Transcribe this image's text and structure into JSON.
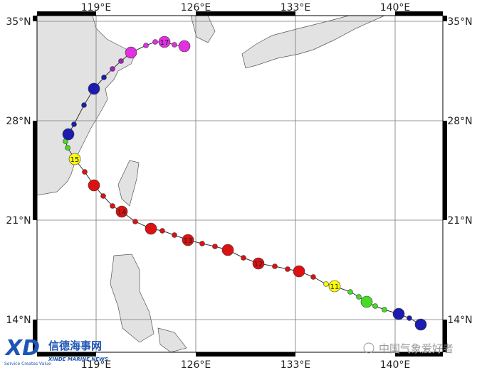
{
  "map": {
    "lon_ticks": [
      {
        "value": 119,
        "label": "119°E"
      },
      {
        "value": 126,
        "label": "126°E"
      },
      {
        "value": 133,
        "label": "133°E"
      },
      {
        "value": 140,
        "label": "140°E"
      }
    ],
    "lat_ticks": [
      {
        "value": 35,
        "label": "35°N"
      },
      {
        "value": 28,
        "label": "28°N"
      },
      {
        "value": 21,
        "label": "21°N"
      },
      {
        "value": 14,
        "label": "14°N"
      }
    ],
    "lonlim": [
      114.85,
      143.35
    ],
    "latlim": [
      11.7,
      35.4
    ],
    "track": [
      {
        "lon": 141.8,
        "lat": 13.65,
        "color": "#1c1cb0",
        "major": true
      },
      {
        "lon": 141.0,
        "lat": 14.1,
        "color": "#1c1cb0",
        "major": false
      },
      {
        "lon": 140.25,
        "lat": 14.4,
        "color": "#1c1cb0",
        "major": true
      },
      {
        "lon": 139.25,
        "lat": 14.7,
        "color": "#44dd22",
        "major": false
      },
      {
        "lon": 138.6,
        "lat": 14.95,
        "color": "#44dd22",
        "major": false
      },
      {
        "lon": 138.0,
        "lat": 15.25,
        "color": "#44dd22",
        "major": true
      },
      {
        "lon": 137.45,
        "lat": 15.6,
        "color": "#44dd22",
        "major": false
      },
      {
        "lon": 136.85,
        "lat": 15.95,
        "color": "#44dd22",
        "major": false
      },
      {
        "lon": 135.75,
        "lat": 16.35,
        "color": "#ffff00",
        "major": true,
        "label": "11"
      },
      {
        "lon": 135.15,
        "lat": 16.5,
        "color": "#ffff00",
        "major": false
      },
      {
        "lon": 134.25,
        "lat": 17.0,
        "color": "#dd1111",
        "major": false
      },
      {
        "lon": 133.25,
        "lat": 17.4,
        "color": "#dd1111",
        "major": true
      },
      {
        "lon": 132.45,
        "lat": 17.55,
        "color": "#dd1111",
        "major": false
      },
      {
        "lon": 131.55,
        "lat": 17.75,
        "color": "#dd1111",
        "major": false
      },
      {
        "lon": 130.4,
        "lat": 17.95,
        "color": "#dd1111",
        "major": true,
        "label": "12"
      },
      {
        "lon": 129.35,
        "lat": 18.35,
        "color": "#dd1111",
        "major": false
      },
      {
        "lon": 128.25,
        "lat": 18.9,
        "color": "#dd1111",
        "major": true
      },
      {
        "lon": 127.35,
        "lat": 19.15,
        "color": "#dd1111",
        "major": false
      },
      {
        "lon": 126.45,
        "lat": 19.35,
        "color": "#dd1111",
        "major": false
      },
      {
        "lon": 125.45,
        "lat": 19.6,
        "color": "#dd1111",
        "major": true,
        "label": "13"
      },
      {
        "lon": 124.5,
        "lat": 19.95,
        "color": "#dd1111",
        "major": false
      },
      {
        "lon": 123.65,
        "lat": 20.25,
        "color": "#dd1111",
        "major": false
      },
      {
        "lon": 122.85,
        "lat": 20.4,
        "color": "#dd1111",
        "major": true
      },
      {
        "lon": 121.75,
        "lat": 20.9,
        "color": "#dd1111",
        "major": false
      },
      {
        "lon": 120.8,
        "lat": 21.6,
        "color": "#dd1111",
        "major": true,
        "label": "14"
      },
      {
        "lon": 120.15,
        "lat": 22.0,
        "color": "#dd1111",
        "major": false
      },
      {
        "lon": 119.5,
        "lat": 22.7,
        "color": "#dd1111",
        "major": false
      },
      {
        "lon": 118.85,
        "lat": 23.45,
        "color": "#dd1111",
        "major": true
      },
      {
        "lon": 118.2,
        "lat": 24.4,
        "color": "#dd1111",
        "major": false
      },
      {
        "lon": 117.5,
        "lat": 25.3,
        "color": "#ffff00",
        "major": true,
        "label": "15"
      },
      {
        "lon": 117.0,
        "lat": 26.1,
        "color": "#44dd22",
        "major": false
      },
      {
        "lon": 116.85,
        "lat": 26.55,
        "color": "#44dd22",
        "major": false
      },
      {
        "lon": 117.05,
        "lat": 27.05,
        "color": "#1c1cb0",
        "major": true
      },
      {
        "lon": 117.45,
        "lat": 27.75,
        "color": "#1c1cb0",
        "major": false
      },
      {
        "lon": 118.15,
        "lat": 29.1,
        "color": "#1c1cb0",
        "major": false
      },
      {
        "lon": 118.85,
        "lat": 30.25,
        "color": "#1c1cb0",
        "major": true
      },
      {
        "lon": 119.55,
        "lat": 31.05,
        "color": "#1c1cb0",
        "major": false
      },
      {
        "lon": 120.15,
        "lat": 31.65,
        "color": "#a020c0",
        "major": false
      },
      {
        "lon": 120.75,
        "lat": 32.2,
        "color": "#a020c0",
        "major": false
      },
      {
        "lon": 121.45,
        "lat": 32.8,
        "color": "#e030e0",
        "major": true
      },
      {
        "lon": 122.5,
        "lat": 33.3,
        "color": "#e030e0",
        "major": false
      },
      {
        "lon": 123.15,
        "lat": 33.55,
        "color": "#e030e0",
        "major": false
      },
      {
        "lon": 123.8,
        "lat": 33.55,
        "color": "#e030e0",
        "major": true,
        "label": "17"
      },
      {
        "lon": 124.5,
        "lat": 33.35,
        "color": "#e030e0",
        "major": false
      },
      {
        "lon": 125.2,
        "lat": 33.25,
        "color": "#e030e0",
        "major": true
      }
    ]
  },
  "watermark": {
    "brand": "信德海事网",
    "slogan": "Service Creates Value",
    "brand_en": "XINDE MARINE NEWS",
    "source": "中国气象爱好者"
  }
}
